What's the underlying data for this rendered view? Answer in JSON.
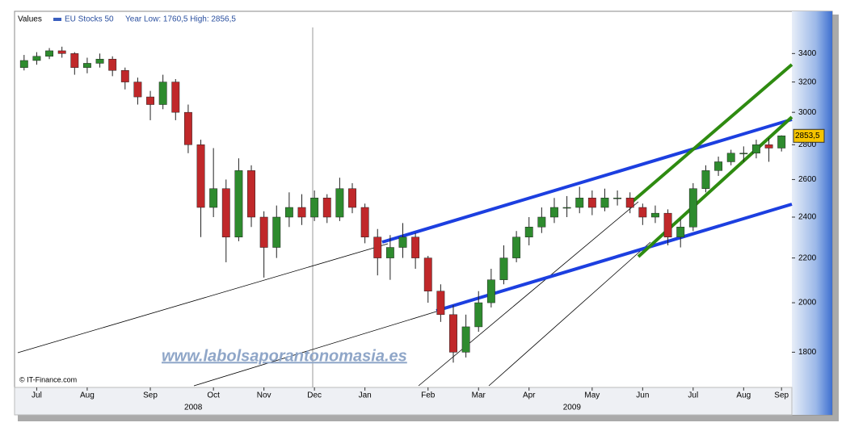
{
  "chart_data": {
    "type": "candlestick",
    "panel_label": "Values",
    "series_name": "EU Stocks 50",
    "year_range": "Year Low: 1760,5 High: 2856,5",
    "credit": "© IT-Finance.com",
    "watermark": "www.labolsaporantonomasia.es",
    "up_color": "#2e8b2e",
    "down_color": "#c0282a",
    "legend_color": "#3a5fbf",
    "log_y": true,
    "ylim": [
      1670,
      3720
    ],
    "yticks": [
      1800,
      2000,
      2200,
      2400,
      2600,
      2800,
      3000,
      3200,
      3400
    ],
    "categories": [
      null,
      "Jul",
      null,
      null,
      null,
      "Aug",
      null,
      null,
      null,
      null,
      "Sep",
      null,
      null,
      null,
      null,
      "Oct",
      null,
      null,
      null,
      "Nov",
      null,
      null,
      null,
      "Dec",
      null,
      null,
      null,
      "Jan",
      null,
      null,
      null,
      null,
      "Feb",
      null,
      null,
      null,
      "Mar",
      null,
      null,
      null,
      "Apr",
      null,
      null,
      null,
      null,
      "May",
      null,
      null,
      null,
      "Jun",
      null,
      null,
      null,
      "Jul",
      null,
      null,
      null,
      "Aug",
      null,
      null,
      "Sep"
    ],
    "years": [
      "2008",
      "2009"
    ],
    "open": [
      3300,
      3350,
      3380,
      3420,
      3400,
      3300,
      3330,
      3360,
      3280,
      3200,
      3100,
      3050,
      3200,
      3000,
      2800,
      2450,
      2550,
      2300,
      2650,
      2400,
      2250,
      2400,
      2450,
      2400,
      2500,
      2400,
      2550,
      2450,
      2300,
      2200,
      2250,
      2300,
      2200,
      2050,
      1950,
      1800,
      1900,
      2000,
      2100,
      2200,
      2300,
      2350,
      2400,
      2450,
      2450,
      2500,
      2450,
      2500,
      2500,
      2450,
      2400,
      2420,
      2300,
      2350,
      2550,
      2650,
      2700,
      2750,
      2750,
      2800,
      2780
    ],
    "high": [
      3390,
      3410,
      3440,
      3450,
      3410,
      3370,
      3400,
      3380,
      3300,
      3230,
      3140,
      3250,
      3220,
      3050,
      2830,
      2780,
      2600,
      2720,
      2680,
      2430,
      2460,
      2530,
      2520,
      2540,
      2520,
      2610,
      2580,
      2470,
      2340,
      2310,
      2370,
      2320,
      2210,
      2080,
      1990,
      1950,
      2050,
      2150,
      2260,
      2330,
      2400,
      2450,
      2500,
      2510,
      2560,
      2540,
      2550,
      2540,
      2530,
      2470,
      2460,
      2440,
      2390,
      2580,
      2680,
      2730,
      2770,
      2790,
      2830,
      2840,
      2856.5
    ],
    "low": [
      3280,
      3320,
      3360,
      3370,
      3250,
      3260,
      3300,
      3240,
      3150,
      3050,
      2950,
      3020,
      2950,
      2750,
      2300,
      2400,
      2180,
      2280,
      2350,
      2110,
      2200,
      2350,
      2360,
      2380,
      2370,
      2380,
      2420,
      2270,
      2120,
      2100,
      2200,
      2150,
      2000,
      1920,
      1760.5,
      1780,
      1880,
      1980,
      2080,
      2180,
      2260,
      2320,
      2370,
      2400,
      2420,
      2410,
      2430,
      2460,
      2420,
      2360,
      2370,
      2260,
      2250,
      2330,
      2530,
      2620,
      2680,
      2700,
      2720,
      2700,
      2760
    ],
    "close": [
      3350,
      3380,
      3420,
      3400,
      3300,
      3330,
      3360,
      3280,
      3200,
      3100,
      3050,
      3200,
      3000,
      2800,
      2450,
      2550,
      2300,
      2650,
      2400,
      2250,
      2400,
      2450,
      2400,
      2500,
      2400,
      2550,
      2450,
      2300,
      2200,
      2250,
      2300,
      2200,
      2050,
      1950,
      1800,
      1900,
      2000,
      2100,
      2200,
      2300,
      2350,
      2400,
      2450,
      2450,
      2500,
      2450,
      2500,
      2500,
      2450,
      2400,
      2420,
      2300,
      2350,
      2550,
      2650,
      2700,
      2750,
      2750,
      2800,
      2780,
      2853.5
    ],
    "last_value_label": "2853,5"
  }
}
